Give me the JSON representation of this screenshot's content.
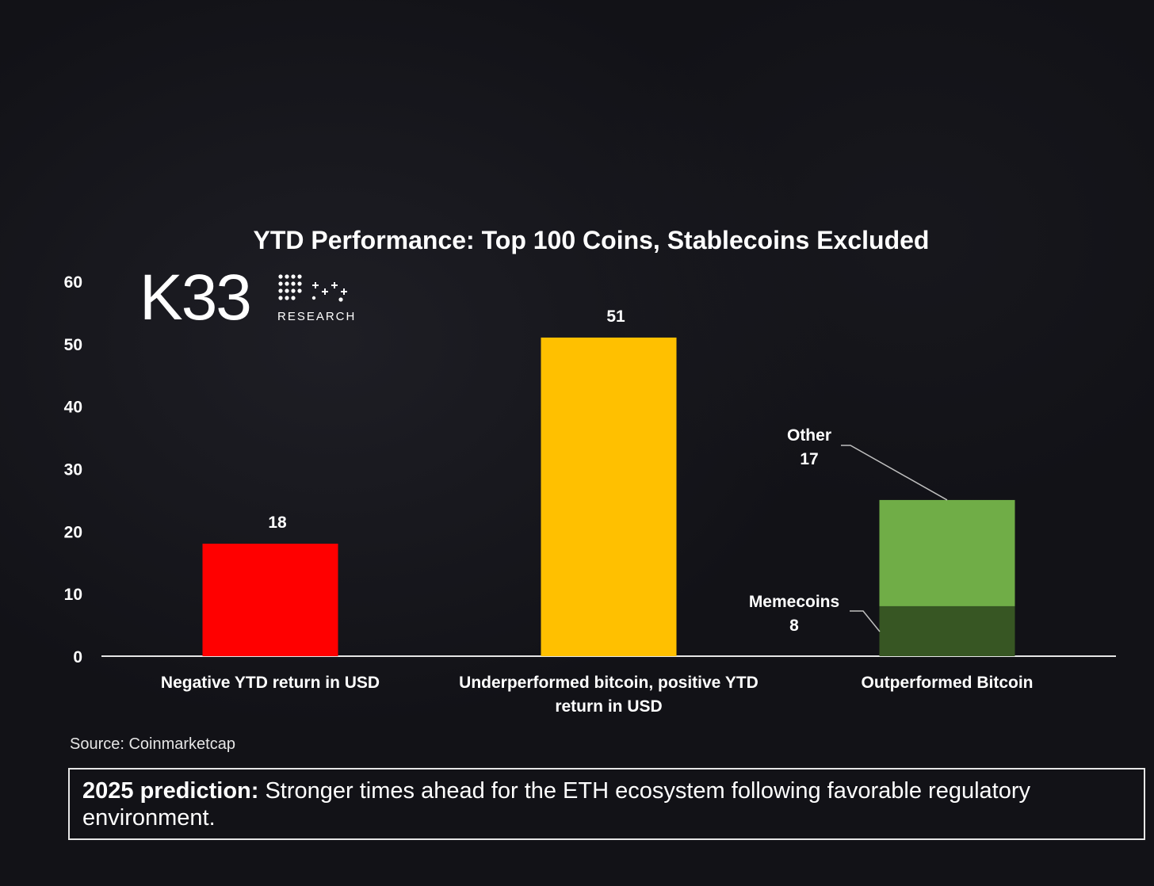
{
  "chart_data": {
    "type": "bar",
    "title": "YTD Performance: Top 100 Coins, Stablecoins Excluded",
    "ylim": [
      0,
      60
    ],
    "yticks": [
      0,
      10,
      20,
      30,
      40,
      50,
      60
    ],
    "grid": false,
    "categories": [
      [
        "Negative YTD return in USD"
      ],
      [
        "Underperformed bitcoin, positive YTD",
        "return in USD"
      ],
      [
        "Outperformed Bitcoin"
      ]
    ],
    "bars": [
      {
        "value": 18,
        "label": "18",
        "color": "#ff0000"
      },
      {
        "value": 51,
        "label": "51",
        "color": "#ffc000"
      }
    ],
    "stacked": {
      "segments": [
        {
          "name": "Memecoins",
          "value": 8,
          "label": "8",
          "color": "#375623"
        },
        {
          "name": "Other",
          "value": 17,
          "label": "17",
          "color": "#70ad47"
        }
      ]
    }
  },
  "logo": {
    "text": "K33",
    "subtext": "RESEARCH"
  },
  "source": "Source: Coinmarketcap",
  "prediction": {
    "lead": "2025 prediction:",
    "text": " Stronger times ahead for the ETH ecosystem following favorable regulatory environment."
  },
  "colors": {
    "background": "#121217",
    "axis": "#e6e6e6"
  }
}
